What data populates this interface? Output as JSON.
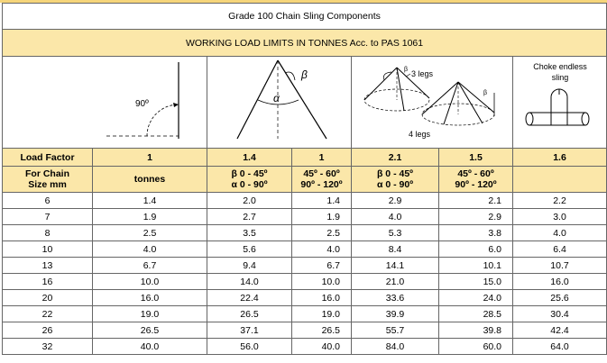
{
  "title": "Grade 100  Chain Sling Components",
  "subtitle": "WORKING LOAD LIMITS IN TONNES Acc. to PAS 1061",
  "diagrams": {
    "vertical": {
      "angle_label": "90º"
    },
    "two_leg": {
      "alpha": "α",
      "beta": "β"
    },
    "multi_leg": {
      "beta": "β",
      "three_legs": "3 legs",
      "four_legs": "4 legs"
    },
    "choke": {
      "line1": "Choke endless",
      "line2": "sling"
    }
  },
  "load_factor": {
    "label": "Load Factor",
    "values": [
      "1",
      "1.4",
      "1",
      "2.1",
      "1.5",
      "1.6"
    ]
  },
  "header": {
    "col0": [
      "For Chain",
      "Size mm"
    ],
    "col1": "tonnes",
    "col2": [
      "β 0 - 45º",
      "α 0 - 90º"
    ],
    "col3": [
      "45º -   60º",
      "90º - 120º"
    ],
    "col4": [
      "β 0 - 45º",
      "α 0 - 90º"
    ],
    "col5": [
      "45º -   60º",
      "90º - 120º"
    ],
    "col6": ""
  },
  "rows": [
    [
      "6",
      "1.4",
      "2.0",
      "1.4",
      "2.9",
      "2.1",
      "2.2"
    ],
    [
      "7",
      "1.9",
      "2.7",
      "1.9",
      "4.0",
      "2.9",
      "3.0"
    ],
    [
      "8",
      "2.5",
      "3.5",
      "2.5",
      "5.3",
      "3.8",
      "4.0"
    ],
    [
      "10",
      "4.0",
      "5.6",
      "4.0",
      "8.4",
      "6.0",
      "6.4"
    ],
    [
      "13",
      "6.7",
      "9.4",
      "6.7",
      "14.1",
      "10.1",
      "10.7"
    ],
    [
      "16",
      "10.0",
      "14.0",
      "10.0",
      "21.0",
      "15.0",
      "16.0"
    ],
    [
      "20",
      "16.0",
      "22.4",
      "16.0",
      "33.6",
      "24.0",
      "25.6"
    ],
    [
      "22",
      "19.0",
      "26.5",
      "19.0",
      "39.9",
      "28.5",
      "30.4"
    ],
    [
      "26",
      "26.5",
      "37.1",
      "26.5",
      "55.7",
      "39.8",
      "42.4"
    ],
    [
      "32",
      "40.0",
      "56.0",
      "40.0",
      "84.0",
      "60.0",
      "64.0"
    ]
  ],
  "colors": {
    "header_fill": "#fbe7a9",
    "accent_bar": "#f6d57a",
    "grid": "#666666"
  }
}
